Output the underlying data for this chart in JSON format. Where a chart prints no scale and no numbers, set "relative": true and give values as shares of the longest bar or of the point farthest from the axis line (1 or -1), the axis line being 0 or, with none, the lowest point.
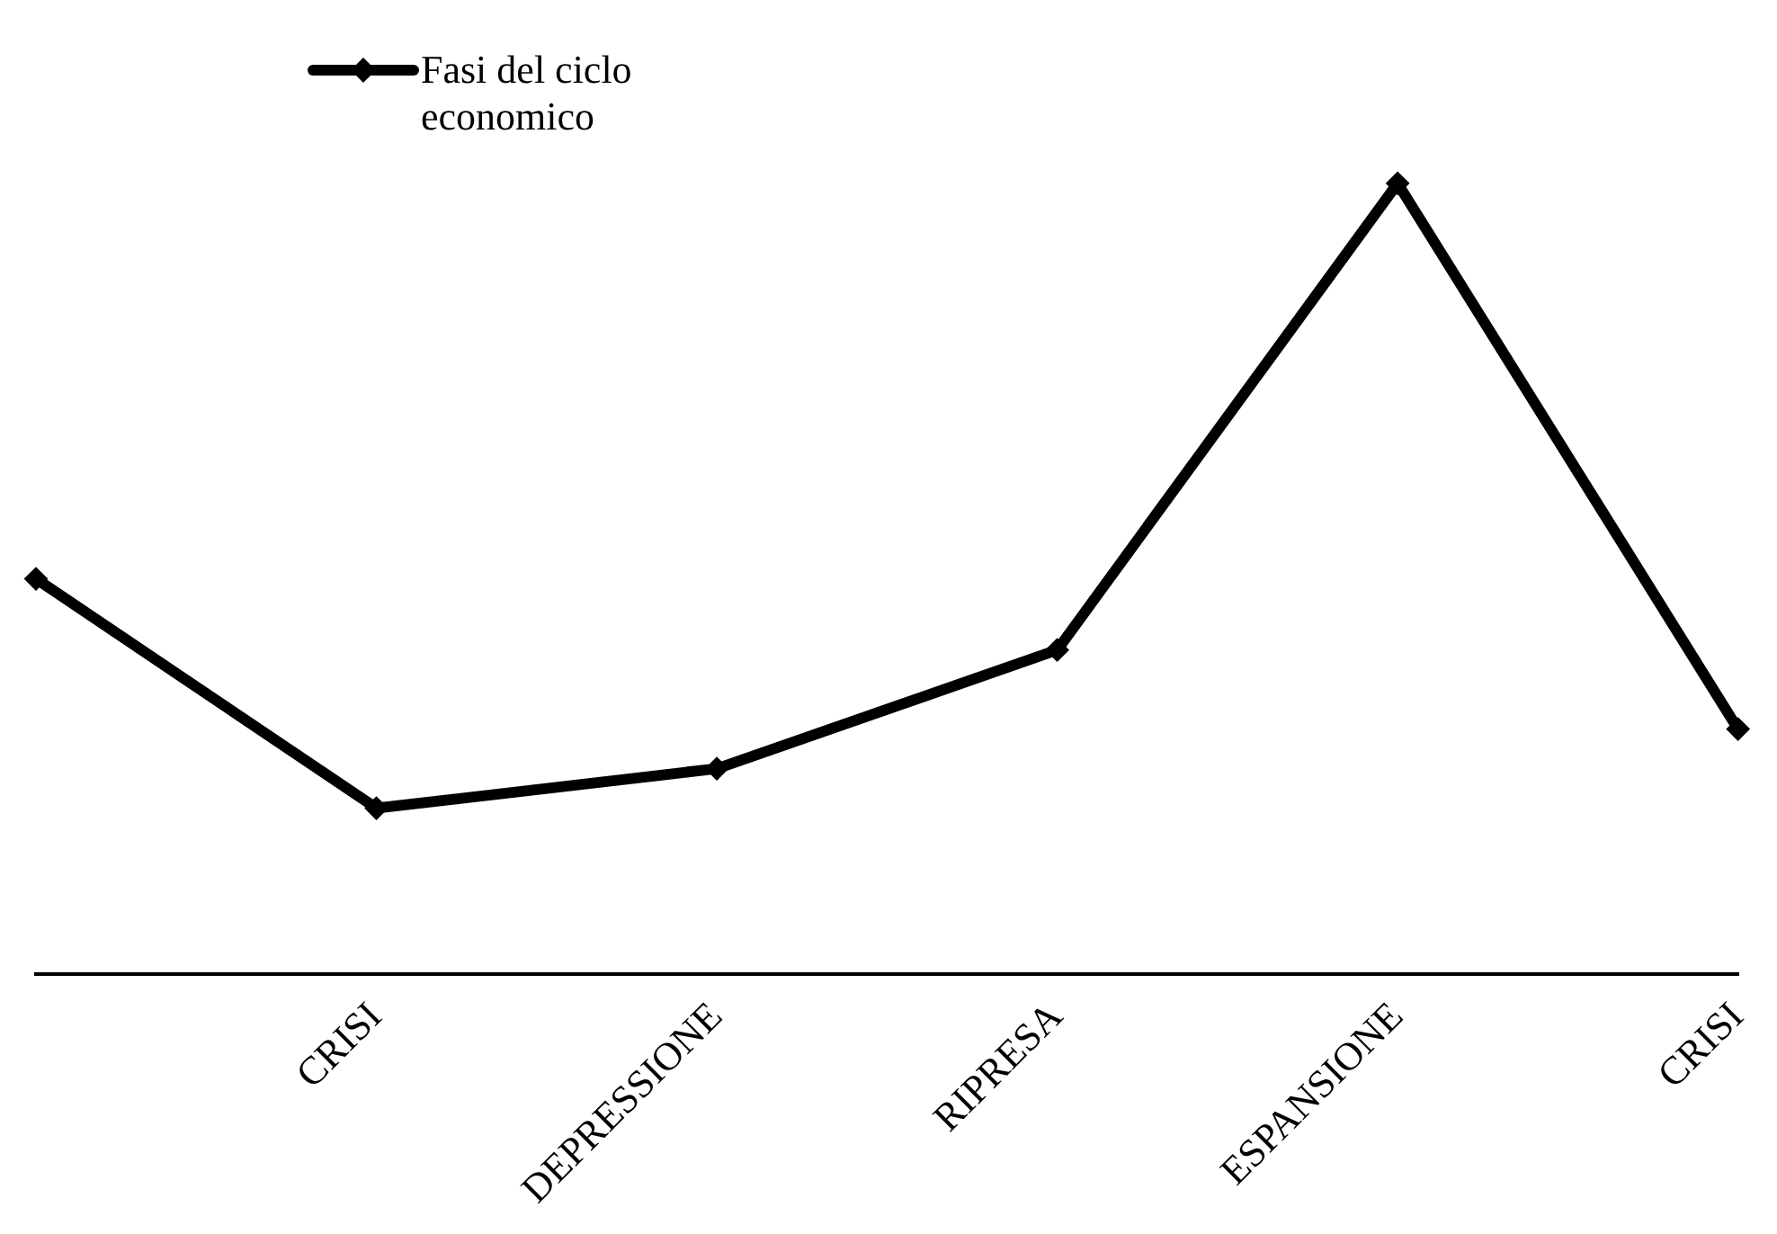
{
  "chart_data": {
    "type": "line",
    "relative": true,
    "categories": [
      null,
      "CRISI",
      "DEPRESSIONE",
      "RIPRESA",
      "ESPANSIONE",
      "CRISI"
    ],
    "series": [
      {
        "name": "Fasi del ciclo economico",
        "color": "#000000",
        "values": [
          0.5,
          0.21,
          0.26,
          0.41,
          1,
          0.31
        ]
      }
    ],
    "marker": "diamond",
    "line_style": "solid",
    "legend": "top left",
    "grid": false
  }
}
